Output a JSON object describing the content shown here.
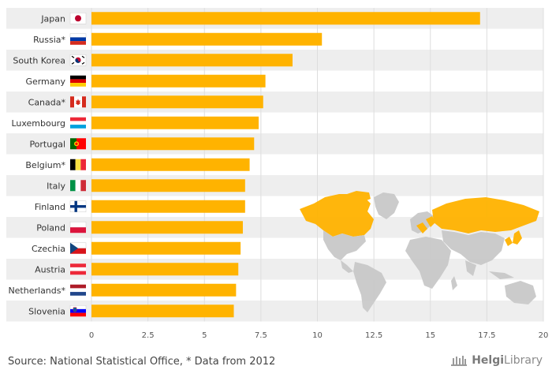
{
  "chart_data": {
    "type": "bar",
    "orientation": "horizontal",
    "title": "",
    "xlabel": "",
    "ylabel": "",
    "xlim": [
      0,
      20
    ],
    "ticks": [
      "0",
      "2.5",
      "5",
      "7.5",
      "10",
      "12.5",
      "15",
      "17.5",
      "20"
    ],
    "tick_values": [
      0,
      2.5,
      5,
      7.5,
      10,
      12.5,
      15,
      17.5,
      20
    ],
    "categories": [
      "Japan",
      "Russia*",
      "South Korea",
      "Germany",
      "Canada*",
      "Luxembourg",
      "Portugal",
      "Belgium*",
      "Italy",
      "Finland",
      "Poland",
      "Czechia",
      "Austria",
      "Netherlands*",
      "Slovenia"
    ],
    "values": [
      17.2,
      10.2,
      8.9,
      7.7,
      7.6,
      7.4,
      7.2,
      7.0,
      6.8,
      6.8,
      6.7,
      6.6,
      6.5,
      6.4,
      6.3
    ],
    "bar_color": "#FFB300",
    "stripe_color": "#EEEEEE",
    "grid": true
  },
  "footer": {
    "source": "Source: National Statistical Office, * Data from 2012",
    "brand_a": "Helgi",
    "brand_b": "Library"
  },
  "icons": {
    "flags": [
      "flag-japan-icon",
      "flag-russia-icon",
      "flag-south-korea-icon",
      "flag-germany-icon",
      "flag-canada-icon",
      "flag-luxembourg-icon",
      "flag-portugal-icon",
      "flag-belgium-icon",
      "flag-italy-icon",
      "flag-finland-icon",
      "flag-poland-icon",
      "flag-czechia-icon",
      "flag-austria-icon",
      "flag-netherlands-icon",
      "flag-slovenia-icon"
    ],
    "map": "world-map-icon",
    "logo": "library-building-icon"
  },
  "map_highlight_color": "#FFB300",
  "map_base_color": "#C9C9C9"
}
